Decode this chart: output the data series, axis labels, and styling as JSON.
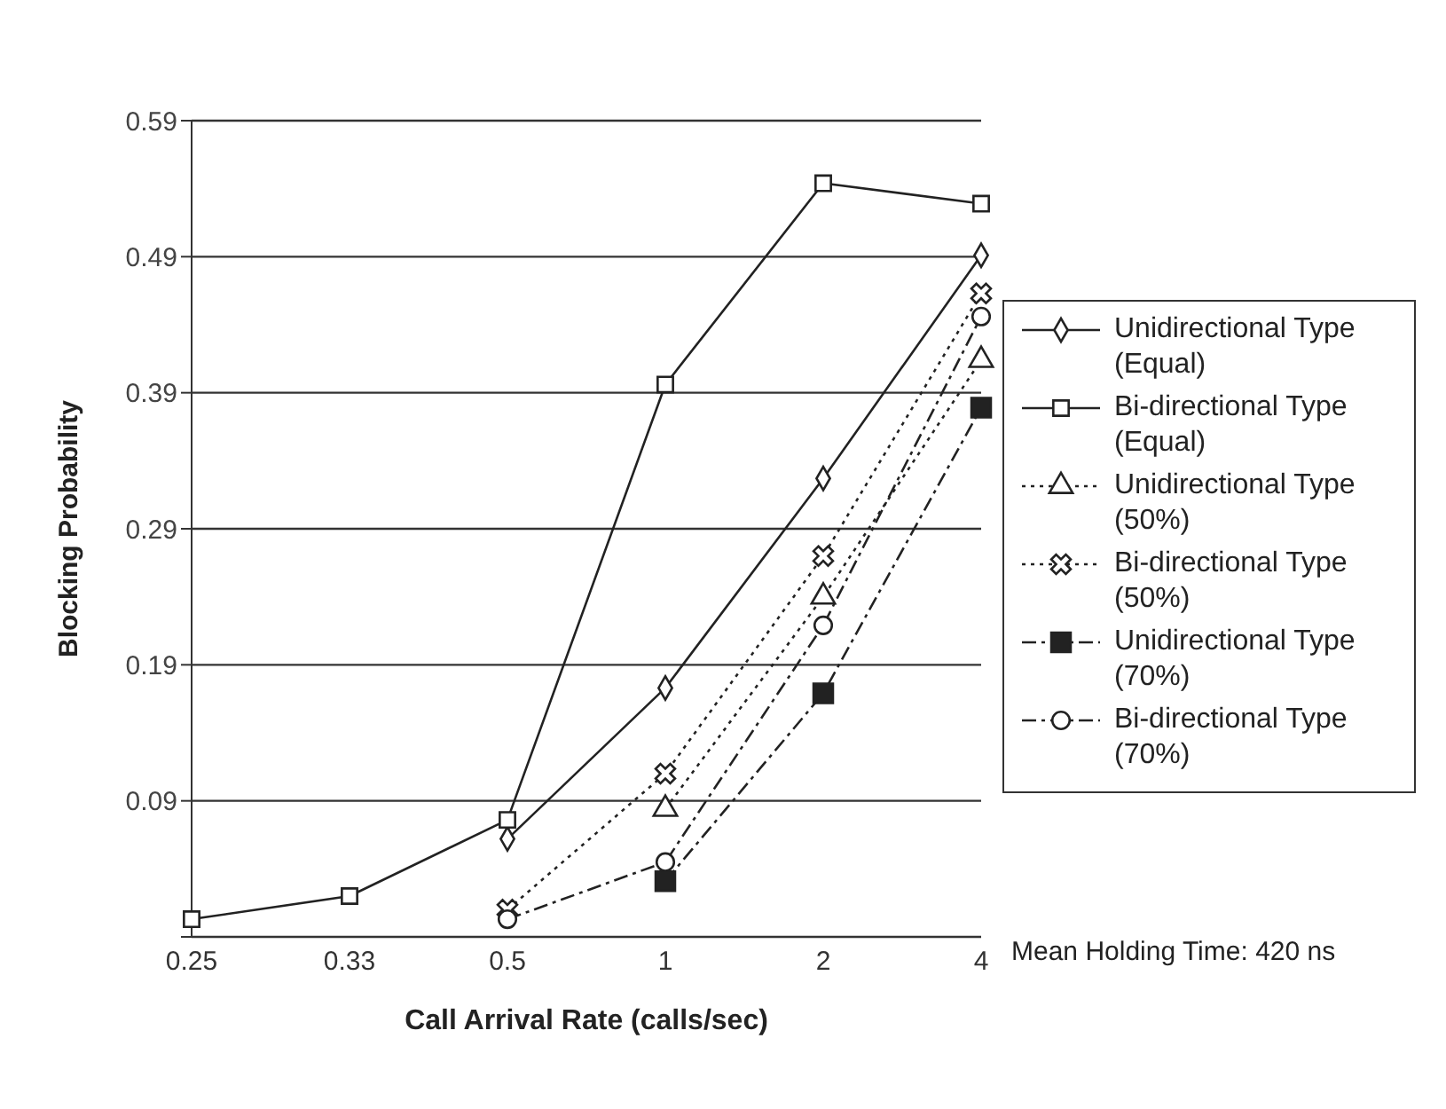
{
  "chart_data": {
    "type": "line",
    "xlabel": "Call Arrival Rate (calls/sec)",
    "ylabel": "Blocking Probability",
    "categories": [
      "0.25",
      "0.33",
      "0.5",
      "1",
      "2",
      "4"
    ],
    "ylim": [
      -0.01,
      0.59
    ],
    "yticks": [
      {
        "value": -0.01,
        "label": null
      },
      0.09,
      0.19,
      0.29,
      0.39,
      0.49,
      0.59
    ],
    "grid": "y",
    "legend": "right",
    "annotations": [
      "Mean Holding Time: 420 ns"
    ],
    "series": [
      {
        "name": "Unidirectional Type (Equal)",
        "color": "#222222",
        "marker": "diamond",
        "line_style": "solid",
        "values": [
          null,
          null,
          0.062,
          0.173,
          0.327,
          0.491
        ]
      },
      {
        "name": "Bi-directional Type (Equal)",
        "color": "#222222",
        "marker": "square",
        "line_style": "solid",
        "values": [
          0.003,
          0.02,
          0.076,
          0.396,
          0.544,
          0.529
        ]
      },
      {
        "name": "Unidirectional Type (50%)",
        "color": "#222222",
        "marker": "triangle",
        "line_style": "dotted",
        "values": [
          null,
          null,
          null,
          0.084,
          0.24,
          0.414
        ]
      },
      {
        "name": "Bi-directional Type (50%)",
        "color": "#222222",
        "marker": "cross",
        "line_style": "dotted",
        "values": [
          null,
          null,
          0.01,
          0.11,
          0.27,
          0.463
        ]
      },
      {
        "name": "Unidirectional Type (70%)",
        "color": "#222222",
        "marker": "square",
        "line_style": "dashed",
        "values": [
          null,
          null,
          null,
          0.031,
          0.169,
          0.379
        ]
      },
      {
        "name": "Bi-directional Type (70%)",
        "color": "#222222",
        "marker": "circle",
        "line_style": "dashed",
        "values": [
          null,
          null,
          0.003,
          0.045,
          0.219,
          0.446
        ]
      }
    ]
  }
}
